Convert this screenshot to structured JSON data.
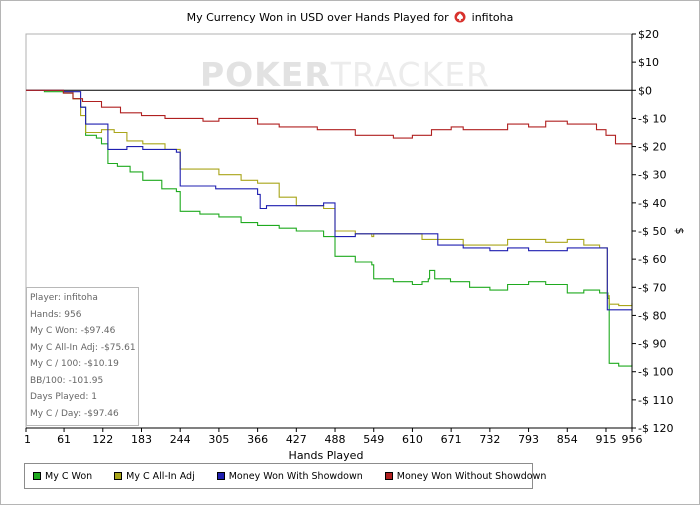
{
  "chart_data": {
    "type": "line",
    "title": "My Currency Won in USD over Hands Played for",
    "title_player": "infitoha",
    "xlabel": "Hands Played",
    "ylabel": "$",
    "xlim": [
      1,
      956
    ],
    "ylim": [
      -120,
      20
    ],
    "x_ticks": [
      1,
      61,
      122,
      183,
      244,
      305,
      366,
      427,
      488,
      549,
      610,
      671,
      732,
      793,
      854,
      915,
      956
    ],
    "y_ticks": [
      {
        "v": 20,
        "label": "$20"
      },
      {
        "v": 10,
        "label": "$10"
      },
      {
        "v": 0,
        "label": "$0"
      },
      {
        "v": -10,
        "label": "-$ 10"
      },
      {
        "v": -20,
        "label": "-$ 20"
      },
      {
        "v": -30,
        "label": "-$ 30"
      },
      {
        "v": -40,
        "label": "-$ 40"
      },
      {
        "v": -50,
        "label": "-$ 50"
      },
      {
        "v": -60,
        "label": "-$ 60"
      },
      {
        "v": -70,
        "label": "-$ 70"
      },
      {
        "v": -80,
        "label": "-$ 80"
      },
      {
        "v": -90,
        "label": "-$ 90"
      },
      {
        "v": -100,
        "label": "-$ 100"
      },
      {
        "v": -110,
        "label": "-$ 110"
      },
      {
        "v": -120,
        "label": "-$ 120"
      }
    ],
    "grid": true,
    "legend_position": "bottom",
    "series": [
      {
        "name": "My C Won",
        "color": "#1faa1f",
        "points": [
          [
            1,
            0
          ],
          [
            15,
            0
          ],
          [
            30,
            -0.5
          ],
          [
            50,
            -0.5
          ],
          [
            60,
            -1
          ],
          [
            75,
            -3
          ],
          [
            87,
            -6
          ],
          [
            95,
            -16
          ],
          [
            112,
            -17
          ],
          [
            120,
            -19
          ],
          [
            130,
            -26
          ],
          [
            145,
            -27
          ],
          [
            165,
            -29
          ],
          [
            185,
            -32
          ],
          [
            215,
            -35
          ],
          [
            238,
            -36
          ],
          [
            244,
            -43
          ],
          [
            275,
            -44
          ],
          [
            305,
            -45
          ],
          [
            340,
            -47
          ],
          [
            366,
            -48
          ],
          [
            400,
            -49
          ],
          [
            427,
            -50
          ],
          [
            470,
            -52
          ],
          [
            487,
            -52
          ],
          [
            488,
            -59
          ],
          [
            520,
            -61
          ],
          [
            546,
            -62
          ],
          [
            549,
            -67
          ],
          [
            580,
            -68
          ],
          [
            610,
            -69
          ],
          [
            625,
            -68
          ],
          [
            635,
            -67
          ],
          [
            637,
            -64
          ],
          [
            642,
            -64
          ],
          [
            645,
            -67
          ],
          [
            670,
            -68
          ],
          [
            700,
            -70
          ],
          [
            732,
            -71
          ],
          [
            760,
            -69
          ],
          [
            793,
            -68
          ],
          [
            820,
            -69
          ],
          [
            854,
            -72
          ],
          [
            880,
            -71
          ],
          [
            905,
            -72
          ],
          [
            918,
            -74
          ],
          [
            920,
            -97
          ],
          [
            935,
            -98
          ],
          [
            956,
            -97.5
          ]
        ]
      },
      {
        "name": "My C All-In Adj",
        "color": "#a9a51a",
        "points": [
          [
            1,
            0
          ],
          [
            60,
            -0.5
          ],
          [
            75,
            -3
          ],
          [
            87,
            -9
          ],
          [
            95,
            -15
          ],
          [
            112,
            -15
          ],
          [
            120,
            -14
          ],
          [
            140,
            -15
          ],
          [
            160,
            -18
          ],
          [
            185,
            -19
          ],
          [
            220,
            -21
          ],
          [
            238,
            -21
          ],
          [
            244,
            -28
          ],
          [
            275,
            -28
          ],
          [
            305,
            -30
          ],
          [
            340,
            -32
          ],
          [
            366,
            -33
          ],
          [
            400,
            -38
          ],
          [
            427,
            -41
          ],
          [
            470,
            -42
          ],
          [
            487,
            -42
          ],
          [
            488,
            -50
          ],
          [
            520,
            -51
          ],
          [
            546,
            -52
          ],
          [
            549,
            -51
          ],
          [
            580,
            -51
          ],
          [
            610,
            -51
          ],
          [
            620,
            -51
          ],
          [
            625,
            -53
          ],
          [
            650,
            -53
          ],
          [
            690,
            -55
          ],
          [
            732,
            -55
          ],
          [
            760,
            -53
          ],
          [
            793,
            -53
          ],
          [
            820,
            -54
          ],
          [
            854,
            -53
          ],
          [
            880,
            -55
          ],
          [
            905,
            -56
          ],
          [
            916,
            -56
          ],
          [
            917,
            -73
          ],
          [
            920,
            -76
          ],
          [
            935,
            -76.5
          ],
          [
            956,
            -75.6
          ]
        ]
      },
      {
        "name": "Money Won With Showdown",
        "color": "#1f1fb0",
        "points": [
          [
            1,
            0
          ],
          [
            60,
            -0.5
          ],
          [
            87,
            -6
          ],
          [
            95,
            -12
          ],
          [
            112,
            -12
          ],
          [
            130,
            -21
          ],
          [
            160,
            -20
          ],
          [
            185,
            -21
          ],
          [
            238,
            -22
          ],
          [
            244,
            -34
          ],
          [
            300,
            -35
          ],
          [
            366,
            -37
          ],
          [
            370,
            -42
          ],
          [
            380,
            -41
          ],
          [
            427,
            -41
          ],
          [
            470,
            -40
          ],
          [
            487,
            -40
          ],
          [
            488,
            -52
          ],
          [
            520,
            -51
          ],
          [
            546,
            -51
          ],
          [
            600,
            -51
          ],
          [
            610,
            -51
          ],
          [
            650,
            -55
          ],
          [
            690,
            -56
          ],
          [
            732,
            -57
          ],
          [
            760,
            -56
          ],
          [
            793,
            -57
          ],
          [
            820,
            -57
          ],
          [
            854,
            -56
          ],
          [
            880,
            -56
          ],
          [
            905,
            -56
          ],
          [
            914,
            -56
          ],
          [
            917,
            -78
          ],
          [
            956,
            -78
          ]
        ]
      },
      {
        "name": "Money Won Without Showdown",
        "color": "#b02020",
        "points": [
          [
            1,
            0
          ],
          [
            60,
            -1
          ],
          [
            75,
            -3
          ],
          [
            90,
            -4
          ],
          [
            120,
            -6
          ],
          [
            150,
            -8
          ],
          [
            183,
            -9
          ],
          [
            220,
            -10
          ],
          [
            244,
            -10
          ],
          [
            280,
            -11
          ],
          [
            305,
            -10
          ],
          [
            340,
            -10
          ],
          [
            366,
            -12
          ],
          [
            400,
            -13
          ],
          [
            427,
            -13
          ],
          [
            460,
            -14
          ],
          [
            488,
            -14
          ],
          [
            520,
            -16
          ],
          [
            549,
            -16
          ],
          [
            580,
            -17
          ],
          [
            610,
            -16
          ],
          [
            640,
            -14
          ],
          [
            660,
            -14
          ],
          [
            671,
            -13
          ],
          [
            690,
            -14
          ],
          [
            732,
            -14
          ],
          [
            760,
            -12
          ],
          [
            793,
            -13
          ],
          [
            820,
            -11
          ],
          [
            854,
            -12
          ],
          [
            880,
            -12
          ],
          [
            900,
            -14
          ],
          [
            915,
            -16
          ],
          [
            930,
            -19
          ],
          [
            956,
            -20
          ]
        ]
      }
    ]
  },
  "stats": [
    "Player: infitoha",
    "Hands: 956",
    "My C Won: -$97.46",
    "My C All-In Adj: -$75.61",
    "My C / 100: -$10.19",
    "BB/100: -101.95",
    "Days Played: 1",
    "My C / Day: -$97.46"
  ],
  "watermark": {
    "part1": "POKER",
    "part2": "TRACKER"
  }
}
